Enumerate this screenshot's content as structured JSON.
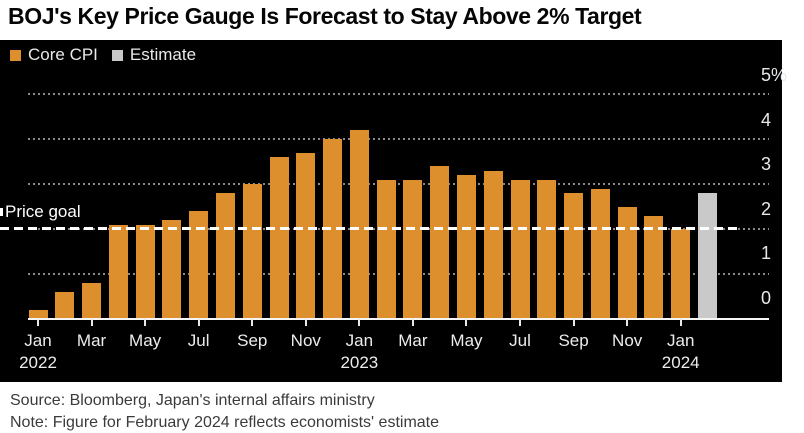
{
  "title": "BOJ's Key Price Gauge Is Forecast to Stay Above 2% Target",
  "legend": {
    "core_cpi": "Core CPI",
    "estimate": "Estimate"
  },
  "annotations": {
    "price_goal": "Price goal"
  },
  "footer": {
    "source": "Source: Bloomberg, Japan's internal affairs ministry",
    "note": "Note: Figure for February 2024 reflects economists' estimate"
  },
  "colors": {
    "core_cpi": "#dc8f2c",
    "estimate": "#c9c9c9",
    "background": "#000000",
    "price_goal_line": "#ffffff",
    "grid": "#8a8a8a",
    "axis_text": "#ececec"
  },
  "chart_data": {
    "type": "bar",
    "title": "BOJ's Key Price Gauge Is Forecast to Stay Above 2% Target",
    "xlabel": "",
    "ylabel": "%",
    "ylim": [
      0,
      5
    ],
    "grid": true,
    "legend_position": "top-left",
    "price_goal_value": 2,
    "y_ticks": [
      {
        "label": "5%",
        "value": 5
      },
      {
        "label": "4",
        "value": 4
      },
      {
        "label": "3",
        "value": 3
      },
      {
        "label": "2",
        "value": 2
      },
      {
        "label": "1",
        "value": 1
      },
      {
        "label": "0",
        "value": 0
      }
    ],
    "categories": [
      "Jan 2022",
      "Feb 2022",
      "Mar 2022",
      "Apr 2022",
      "May 2022",
      "Jun 2022",
      "Jul 2022",
      "Aug 2022",
      "Sep 2022",
      "Oct 2022",
      "Nov 2022",
      "Dec 2022",
      "Jan 2023",
      "Feb 2023",
      "Mar 2023",
      "Apr 2023",
      "May 2023",
      "Jun 2023",
      "Jul 2023",
      "Aug 2023",
      "Sep 2023",
      "Oct 2023",
      "Nov 2023",
      "Dec 2023",
      "Jan 2024",
      "Feb 2024"
    ],
    "series": [
      {
        "name": "Core CPI",
        "color": "#dc8f2c",
        "values": [
          0.2,
          0.6,
          0.8,
          2.1,
          2.1,
          2.2,
          2.4,
          2.8,
          3.0,
          3.6,
          3.7,
          4.0,
          4.2,
          3.1,
          3.1,
          3.4,
          3.2,
          3.3,
          3.1,
          3.1,
          2.8,
          2.9,
          2.5,
          2.3,
          2.0,
          null
        ]
      },
      {
        "name": "Estimate",
        "color": "#c9c9c9",
        "values": [
          null,
          null,
          null,
          null,
          null,
          null,
          null,
          null,
          null,
          null,
          null,
          null,
          null,
          null,
          null,
          null,
          null,
          null,
          null,
          null,
          null,
          null,
          null,
          null,
          null,
          2.8
        ]
      }
    ],
    "x_ticks": [
      {
        "index": 0,
        "month": "Jan",
        "year": "2022"
      },
      {
        "index": 2,
        "month": "Mar",
        "year": null
      },
      {
        "index": 4,
        "month": "May",
        "year": null
      },
      {
        "index": 6,
        "month": "Jul",
        "year": null
      },
      {
        "index": 8,
        "month": "Sep",
        "year": null
      },
      {
        "index": 10,
        "month": "Nov",
        "year": null
      },
      {
        "index": 12,
        "month": "Jan",
        "year": "2023"
      },
      {
        "index": 14,
        "month": "Mar",
        "year": null
      },
      {
        "index": 16,
        "month": "May",
        "year": null
      },
      {
        "index": 18,
        "month": "Jul",
        "year": null
      },
      {
        "index": 20,
        "month": "Sep",
        "year": null
      },
      {
        "index": 22,
        "month": "Nov",
        "year": null
      },
      {
        "index": 24,
        "month": "Jan",
        "year": "2024"
      }
    ]
  }
}
